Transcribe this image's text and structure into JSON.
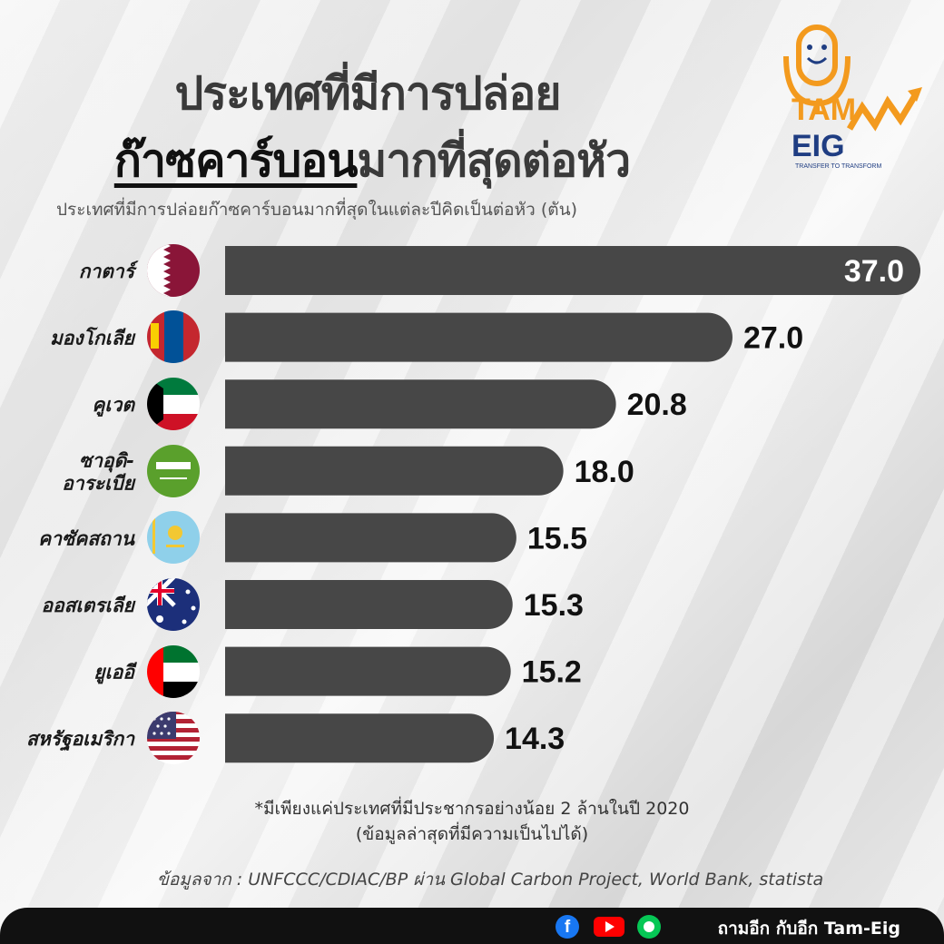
{
  "title_line1": "ประเทศที่มีการปล่อย",
  "title_line2_highlight": "ก๊าซคาร์บอน",
  "title_line2_rest": "มากที่สุดต่อหัว",
  "subtitle": "ประเทศที่มีการปล่อยก๊าซคาร์บอนมากที่สุดในแต่ละปีคิดเป็นต่อหัว (ตัน)",
  "logo": {
    "top": "TAM",
    "bottom": "EIG",
    "tagline": "TRANSFER TO TRANSFORM"
  },
  "chart_data": {
    "type": "bar",
    "orientation": "horizontal",
    "categories": [
      "กาตาร์",
      "มองโกเลีย",
      "คูเวต",
      "ซาอุดิ-\nอาระเบีย",
      "คาซัคสถาน",
      "ออสเตรเลีย",
      "ยูเออี",
      "สหรัฐอเมริกา"
    ],
    "values": [
      37.0,
      27.0,
      20.8,
      18.0,
      15.5,
      15.3,
      15.2,
      14.3
    ],
    "value_labels": [
      "37.0",
      "27.0",
      "20.8",
      "18.0",
      "15.5",
      "15.3",
      "15.2",
      "14.3"
    ],
    "flags": [
      "qatar-flag",
      "mongolia-flag",
      "kuwait-flag",
      "saudi-arabia-flag",
      "kazakhstan-flag",
      "australia-flag",
      "uae-flag",
      "usa-flag"
    ],
    "bar_color": "#474747",
    "unit": "ตัน"
  },
  "note_line1": "*มีเพียงแค่ประเทศที่มีประชากรอย่างน้อย 2 ล้านในปี 2020",
  "note_line2": "(ข้อมูลล่าสุดที่มีความเป็นไปได้)",
  "source": "ข้อมูลจาก : UNFCCC/CDIAC/BP ผ่าน Global Carbon Project, World Bank, statista",
  "footer": {
    "brand": "ถามอีก กับอีก Tam-Eig",
    "icons": [
      "facebook-icon",
      "youtube-icon",
      "line-icon"
    ]
  }
}
